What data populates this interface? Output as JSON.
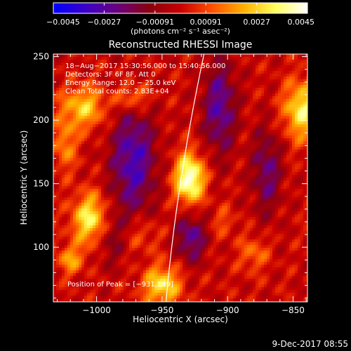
{
  "chart_data": [
    {
      "type": "colorbar",
      "title": "(photons cm⁻² s⁻¹ asec⁻²)",
      "ticks": [
        "−0.0045",
        "−0.0027",
        "−0.00091",
        "0.00091",
        "0.0027",
        "0.0045"
      ],
      "range": [
        -0.0045,
        0.0045
      ],
      "colormap": [
        "#0000ff",
        "#3b00c8",
        "#6a0080",
        "#8a0010",
        "#c80000",
        "#ff5000",
        "#ffb000",
        "#ffff60",
        "#ffffff"
      ]
    },
    {
      "type": "heatmap",
      "title": "Reconstructed RHESSI Image",
      "xlabel": "Heliocentric X (arcsec)",
      "ylabel": "Heliocentric Y (arcsec)",
      "xlim": [
        -1033,
        -839
      ],
      "ylim": [
        57,
        252
      ],
      "x_ticks": [
        -1000,
        -950,
        -900,
        -850
      ],
      "y_ticks": [
        100,
        150,
        200,
        250
      ],
      "x_tick_labels": [
        "−1000",
        "−950",
        "−900",
        "−850"
      ],
      "y_tick_labels": [
        "100",
        "150",
        "200",
        "250"
      ],
      "info_lines": [
        "18−Aug−2017 15:30:56.000 to 15:40:56.000",
        "Detectors: 3F 6F 8F, Att 0",
        "Energy Range: 12.0 − 25.0 keV",
        "Clean     Total counts: 2.83E+04"
      ],
      "annotation": "Position of Peak = [−931,149]",
      "peak": {
        "x": -931,
        "y": 149
      },
      "limb_points": [
        [
          -947,
          57
        ],
        [
          -935,
          150
        ],
        [
          -918,
          252
        ]
      ],
      "sources": [
        {
          "x": -929,
          "y": 154,
          "sx": 8,
          "sy": 14,
          "amp": 0.0045
        },
        {
          "x": -1004,
          "y": 122,
          "sx": 10,
          "sy": 14,
          "amp": 0.0035
        },
        {
          "x": -950,
          "y": 70,
          "sx": 10,
          "sy": 11,
          "amp": 0.0031
        },
        {
          "x": -843,
          "y": 208,
          "sx": 10,
          "sy": 16,
          "amp": 0.0033
        },
        {
          "x": -1010,
          "y": 210,
          "sx": 12,
          "sy": 12,
          "amp": 0.0026
        },
        {
          "x": -972,
          "y": 218,
          "sx": 9,
          "sy": 8,
          "amp": 0.002
        },
        {
          "x": -1024,
          "y": 180,
          "sx": 6,
          "sy": 14,
          "amp": 0.0018
        },
        {
          "x": -1020,
          "y": 90,
          "sx": 7,
          "sy": 8,
          "amp": 0.002
        },
        {
          "x": -880,
          "y": 95,
          "sx": 8,
          "sy": 10,
          "amp": 0.0014
        },
        {
          "x": -903,
          "y": 120,
          "sx": 6,
          "sy": 8,
          "amp": 0.001
        },
        {
          "x": -966,
          "y": 110,
          "sx": 10,
          "sy": 10,
          "amp": 0.0011
        }
      ],
      "negatives": [
        {
          "x": -972,
          "y": 168,
          "sx": 12,
          "sy": 30,
          "amp": -0.003
        },
        {
          "x": -928,
          "y": 108,
          "sx": 8,
          "sy": 14,
          "amp": -0.0025
        },
        {
          "x": -906,
          "y": 210,
          "sx": 9,
          "sy": 26,
          "amp": -0.0026
        },
        {
          "x": -870,
          "y": 160,
          "sx": 8,
          "sy": 24,
          "amp": -0.0021
        },
        {
          "x": -990,
          "y": 110,
          "sx": 8,
          "sy": 16,
          "amp": -0.0016
        }
      ]
    }
  ],
  "footer": {
    "timestamp": "9-Dec-2017 08:55"
  }
}
